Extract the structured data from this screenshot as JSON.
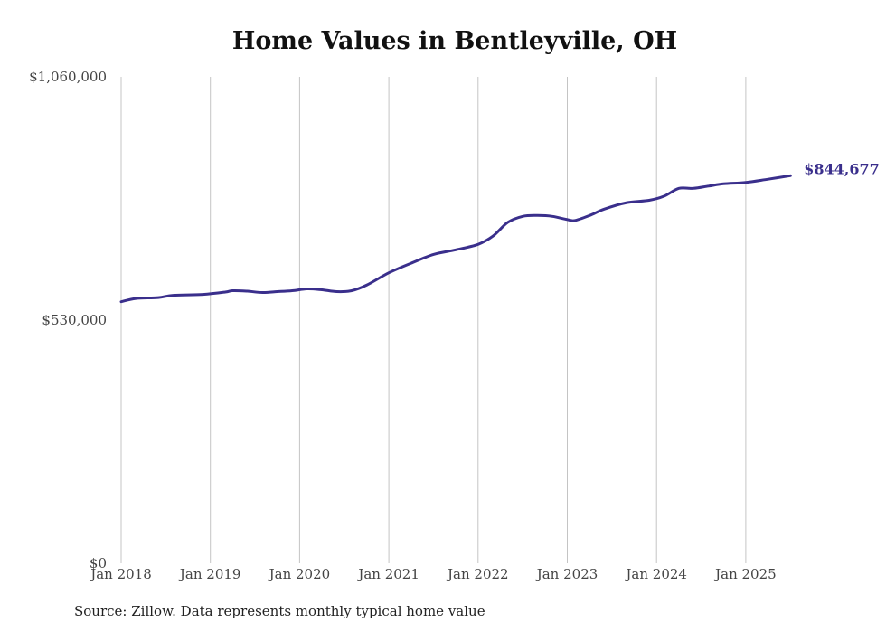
{
  "chart_data": {
    "type": "line",
    "title": "Home Values in Bentleyville, OH",
    "xlabel": "",
    "ylabel": "",
    "ylim": [
      0,
      1060000
    ],
    "y_ticks": [
      {
        "value": 1060000,
        "label": "$1,060,000"
      },
      {
        "value": 530000,
        "label": "$530,000"
      },
      {
        "value": 0,
        "label": "$0"
      }
    ],
    "x_ticks": [
      {
        "date": "2018-01",
        "label": "Jan 2018"
      },
      {
        "date": "2019-01",
        "label": "Jan 2019"
      },
      {
        "date": "2020-01",
        "label": "Jan 2020"
      },
      {
        "date": "2021-01",
        "label": "Jan 2021"
      },
      {
        "date": "2022-01",
        "label": "Jan 2022"
      },
      {
        "date": "2023-01",
        "label": "Jan 2023"
      },
      {
        "date": "2024-01",
        "label": "Jan 2024"
      },
      {
        "date": "2025-01",
        "label": "Jan 2025"
      }
    ],
    "grid": {
      "vertical": true,
      "horizontal": false
    },
    "series": [
      {
        "color": "#3a2f8c",
        "end_label": "$844,677",
        "points": [
          {
            "x": "2018-01",
            "y": 570000
          },
          {
            "x": "2018-03",
            "y": 577000
          },
          {
            "x": "2018-06",
            "y": 579000
          },
          {
            "x": "2018-08",
            "y": 584000
          },
          {
            "x": "2018-12",
            "y": 586000
          },
          {
            "x": "2019-03",
            "y": 591000
          },
          {
            "x": "2019-04",
            "y": 594000
          },
          {
            "x": "2019-06",
            "y": 593000
          },
          {
            "x": "2019-08",
            "y": 590000
          },
          {
            "x": "2019-10",
            "y": 592000
          },
          {
            "x": "2019-12",
            "y": 594000
          },
          {
            "x": "2020-02",
            "y": 598000
          },
          {
            "x": "2020-04",
            "y": 596000
          },
          {
            "x": "2020-06",
            "y": 592000
          },
          {
            "x": "2020-08",
            "y": 594000
          },
          {
            "x": "2020-10",
            "y": 606000
          },
          {
            "x": "2021-01",
            "y": 633000
          },
          {
            "x": "2021-04",
            "y": 654000
          },
          {
            "x": "2021-07",
            "y": 673000
          },
          {
            "x": "2021-10",
            "y": 683000
          },
          {
            "x": "2022-01",
            "y": 695000
          },
          {
            "x": "2022-03",
            "y": 713000
          },
          {
            "x": "2022-05",
            "y": 743000
          },
          {
            "x": "2022-07",
            "y": 756000
          },
          {
            "x": "2022-09",
            "y": 758000
          },
          {
            "x": "2022-11",
            "y": 756000
          },
          {
            "x": "2023-01",
            "y": 749000
          },
          {
            "x": "2023-02",
            "y": 747000
          },
          {
            "x": "2023-04",
            "y": 758000
          },
          {
            "x": "2023-06",
            "y": 772000
          },
          {
            "x": "2023-09",
            "y": 786000
          },
          {
            "x": "2023-12",
            "y": 791000
          },
          {
            "x": "2024-02",
            "y": 800000
          },
          {
            "x": "2024-04",
            "y": 817000
          },
          {
            "x": "2024-06",
            "y": 817000
          },
          {
            "x": "2024-08",
            "y": 822000
          },
          {
            "x": "2024-10",
            "y": 827000
          },
          {
            "x": "2025-01",
            "y": 830000
          },
          {
            "x": "2025-04",
            "y": 837000
          },
          {
            "x": "2025-07",
            "y": 844677
          }
        ]
      }
    ]
  },
  "source_note": "Source: Zillow. Data represents monthly typical home value"
}
